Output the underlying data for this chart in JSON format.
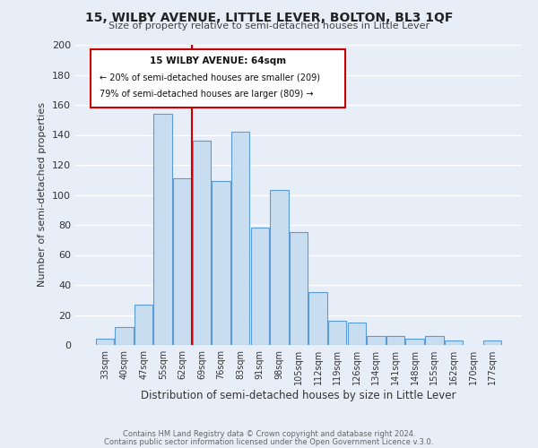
{
  "title": "15, WILBY AVENUE, LITTLE LEVER, BOLTON, BL3 1QF",
  "subtitle": "Size of property relative to semi-detached houses in Little Lever",
  "xlabel": "Distribution of semi-detached houses by size in Little Lever",
  "ylabel": "Number of semi-detached properties",
  "bar_color": "#c8ddf0",
  "bar_edge_color": "#5b9bd5",
  "background_color": "#e8eef8",
  "grid_color": "#ffffff",
  "annotation_box_edge": "#cc0000",
  "vline_color": "#cc0000",
  "footer1": "Contains HM Land Registry data © Crown copyright and database right 2024.",
  "footer2": "Contains public sector information licensed under the Open Government Licence v.3.0.",
  "bins": [
    "33sqm",
    "40sqm",
    "47sqm",
    "55sqm",
    "62sqm",
    "69sqm",
    "76sqm",
    "83sqm",
    "91sqm",
    "98sqm",
    "105sqm",
    "112sqm",
    "119sqm",
    "126sqm",
    "134sqm",
    "141sqm",
    "148sqm",
    "155sqm",
    "162sqm",
    "170sqm",
    "177sqm"
  ],
  "counts": [
    4,
    12,
    27,
    154,
    111,
    136,
    109,
    142,
    78,
    103,
    75,
    35,
    16,
    15,
    6,
    6,
    4,
    6,
    3,
    0,
    3
  ],
  "property_label": "15 WILBY AVENUE: 64sqm",
  "pct_smaller": 20,
  "count_smaller": 209,
  "pct_larger": 79,
  "count_larger": 809,
  "vline_x": 4.5,
  "ylim": [
    0,
    200
  ],
  "yticks": [
    0,
    20,
    40,
    60,
    80,
    100,
    120,
    140,
    160,
    180,
    200
  ]
}
